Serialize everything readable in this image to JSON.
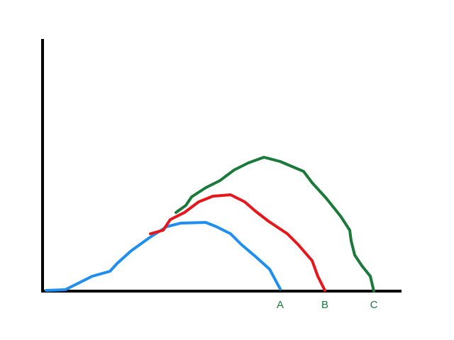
{
  "chart_data": {
    "type": "line",
    "xlim": [
      0,
      506
    ],
    "ylim": [
      0,
      356
    ],
    "label_color": "#1a7a3a",
    "series": [
      {
        "name": "A",
        "color": "#1e8ff0",
        "x": [
          5,
          32,
          50,
          70,
          95,
          105,
          125,
          150,
          175,
          195,
          230,
          245,
          265,
          280,
          300,
          320,
          335
        ],
        "values": [
          1,
          2,
          11,
          21,
          28,
          39,
          57,
          75,
          91,
          96,
          97,
          91,
          81,
          66,
          49,
          31,
          3
        ]
      },
      {
        "name": "B",
        "color": "#e8161b",
        "x": [
          152,
          170,
          180,
          200,
          220,
          240,
          265,
          285,
          300,
          318,
          345,
          360,
          380,
          388,
          398
        ],
        "values": [
          81,
          86,
          101,
          111,
          126,
          134,
          136,
          126,
          113,
          99,
          81,
          66,
          43,
          21,
          1
        ]
      },
      {
        "name": "C",
        "color": "#1a7a3a",
        "x": [
          188,
          202,
          210,
          230,
          250,
          270,
          290,
          312,
          335,
          368,
          380,
          400,
          420,
          433,
          435,
          440,
          450,
          462,
          467
        ],
        "values": [
          111,
          121,
          133,
          146,
          156,
          171,
          181,
          189,
          183,
          169,
          153,
          131,
          106,
          86,
          71,
          51,
          36,
          21,
          0
        ]
      }
    ]
  }
}
